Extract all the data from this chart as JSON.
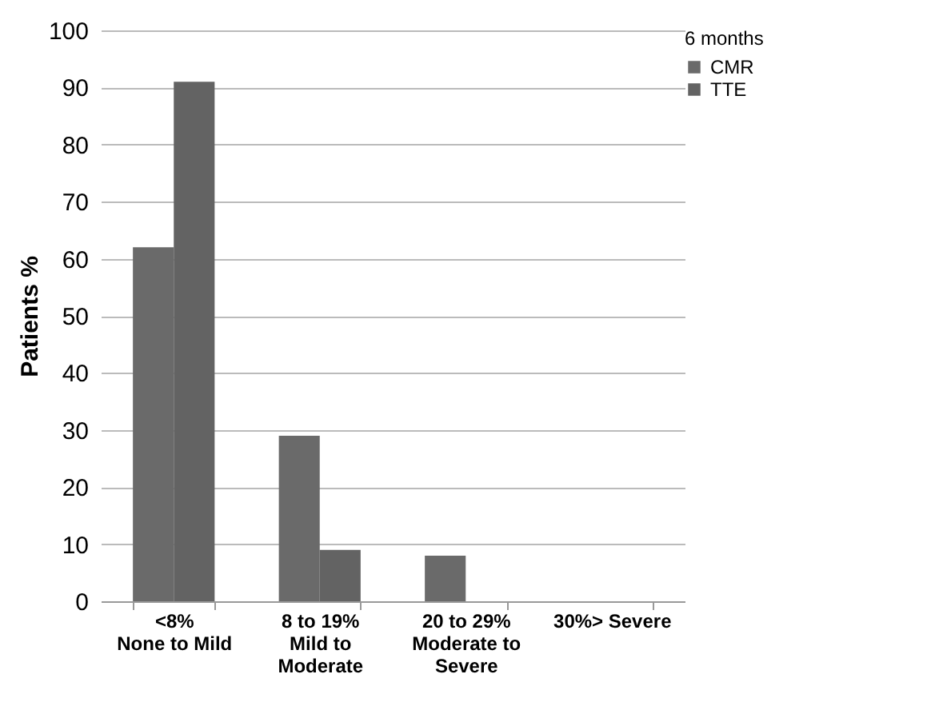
{
  "chart_data": {
    "type": "bar",
    "ylabel": "Patients %",
    "legend_title": "6 months",
    "categories": [
      "<8%\nNone to Mild",
      "8 to 19%\nMild to\nModerate",
      "20 to 29%\nModerate to\nSevere",
      "30%> Severe"
    ],
    "series": [
      {
        "name": "CMR",
        "color": "#6a6a6a",
        "values": [
          62,
          29,
          8,
          0
        ]
      },
      {
        "name": "TTE",
        "color": "#636363",
        "values": [
          91,
          9,
          0,
          0
        ]
      }
    ],
    "ylim": [
      0,
      100
    ],
    "yticks": [
      0,
      10,
      20,
      30,
      40,
      50,
      60,
      70,
      80,
      90,
      100
    ],
    "grid": "y",
    "legend": "right"
  }
}
